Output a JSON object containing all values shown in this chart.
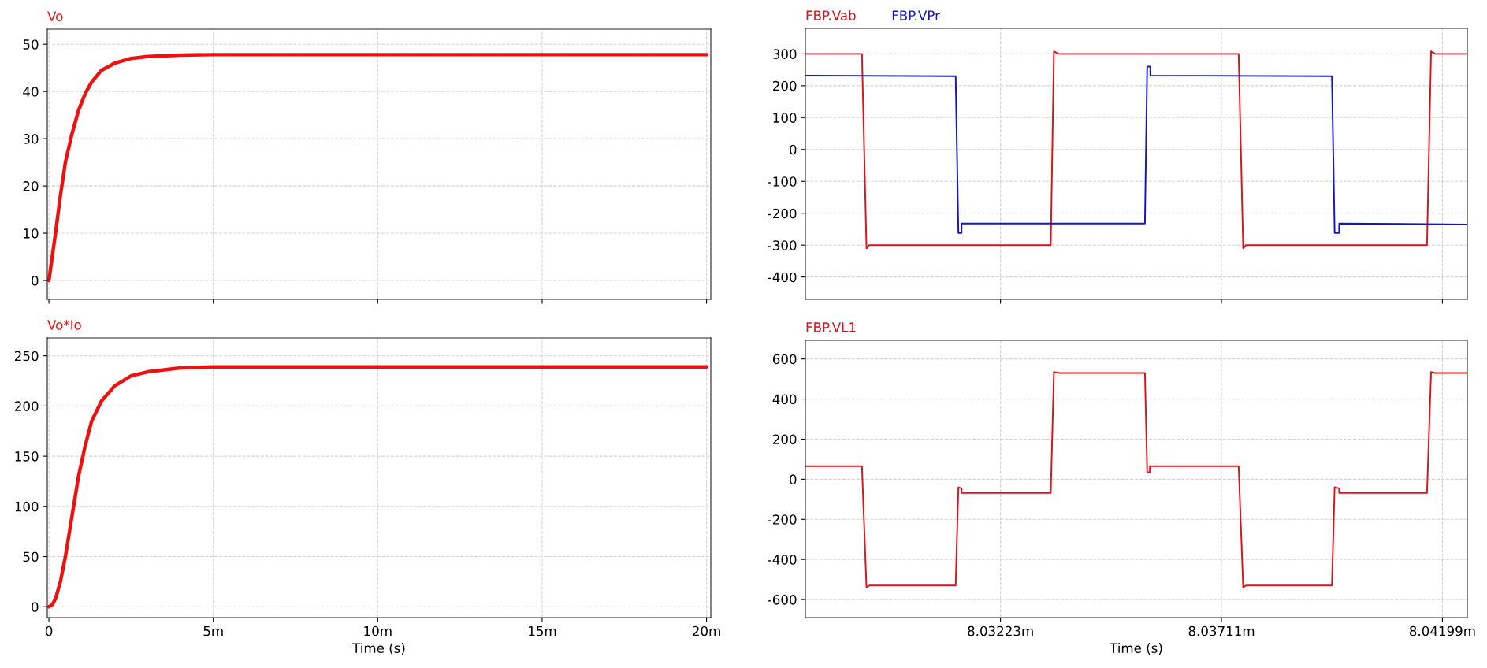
{
  "chart_data": [
    {
      "type": "line",
      "xlim": [
        -0.05,
        20.13
      ],
      "ylim": [
        -4,
        53.2
      ],
      "yticks": [
        0,
        10,
        20,
        30,
        40,
        50
      ],
      "xticks": [
        {
          "value": 0,
          "label": null
        },
        {
          "value": 5,
          "label": null
        },
        {
          "value": 10,
          "label": null
        },
        {
          "value": 15,
          "label": null
        },
        {
          "value": 20,
          "label": null
        }
      ],
      "tick_labels": "y",
      "grid": true,
      "legend": "top left",
      "series": [
        {
          "name": "Vo",
          "color": "#ee1111",
          "x": [
            0,
            0.1,
            0.2,
            0.35,
            0.5,
            0.7,
            0.9,
            1.1,
            1.3,
            1.6,
            2.0,
            2.5,
            3,
            4,
            5,
            20
          ],
          "values": [
            0,
            5,
            10,
            18,
            25,
            31,
            36,
            39.5,
            42,
            44.5,
            46,
            47,
            47.4,
            47.7,
            47.8,
            47.8
          ]
        }
      ]
    },
    {
      "type": "line",
      "xlim": [
        -0.05,
        20.13
      ],
      "ylim": [
        -10.8,
        267.8
      ],
      "yticks": [
        0,
        50,
        100,
        150,
        200,
        250
      ],
      "xticks": [
        0,
        {
          "value": 5,
          "label": "5m"
        },
        {
          "value": 10,
          "label": "10m"
        },
        {
          "value": 15,
          "label": "15m"
        },
        {
          "value": 20,
          "label": "20m"
        }
      ],
      "xlabel": "Time (s)",
      "grid": true,
      "legend": "top left",
      "series": [
        {
          "name": "Vo*Io",
          "color": "#ee1111",
          "x": [
            0,
            0.1,
            0.2,
            0.35,
            0.5,
            0.7,
            0.9,
            1.1,
            1.3,
            1.6,
            2.0,
            2.5,
            3,
            4,
            5,
            20
          ],
          "values": [
            0,
            2,
            8,
            25,
            50,
            90,
            130,
            160,
            185,
            205,
            220,
            230,
            234,
            238,
            239,
            239
          ]
        }
      ]
    },
    {
      "type": "line",
      "xlim": [
        8.02792,
        8.04254
      ],
      "ylim": [
        -470,
        380
      ],
      "yticks": [
        -400,
        -300,
        -200,
        -100,
        0,
        100,
        200,
        300
      ],
      "xticks": [
        {
          "value": 8.03223,
          "label": null
        },
        {
          "value": 8.03711,
          "label": null
        },
        {
          "value": 8.04199,
          "label": null
        }
      ],
      "tick_labels": "y",
      "grid": true,
      "legend": "top left",
      "series": [
        {
          "name": "FBP.Vab",
          "color": "#d8141c",
          "x": [
            8.02792,
            8.02917,
            8.02927,
            8.02933,
            8.03334,
            8.03341,
            8.03351,
            8.03749,
            8.03759,
            8.03765,
            8.04165,
            8.04174,
            8.04183,
            8.04254
          ],
          "values": [
            300,
            300,
            -310,
            -300,
            -300,
            308,
            300,
            300,
            -310,
            -300,
            -300,
            308,
            300,
            300
          ]
        },
        {
          "name": "FBP.VPr",
          "color": "#1414c8",
          "x": [
            8.02792,
            8.03124,
            8.0313,
            8.03137,
            8.03137,
            8.03542,
            8.03547,
            8.03554,
            8.03554,
            8.03955,
            8.03961,
            8.03971,
            8.03971,
            8.04254
          ],
          "values": [
            232,
            230,
            -262,
            -262,
            -232,
            -232,
            260,
            260,
            232,
            230,
            -262,
            -262,
            -232,
            -235
          ]
        }
      ]
    },
    {
      "type": "line",
      "xlim": [
        8.02792,
        8.04254
      ],
      "ylim": [
        -690,
        693
      ],
      "yticks": [
        -600,
        -400,
        -200,
        0,
        200,
        400,
        600
      ],
      "xticks": [
        {
          "value": 8.03223,
          "label": "8.03223m"
        },
        {
          "value": 8.03711,
          "label": "8.03711m"
        },
        {
          "value": 8.04199,
          "label": "8.04199m"
        }
      ],
      "xlabel": "Time (s)",
      "grid": true,
      "legend": "top left",
      "series": [
        {
          "name": "FBP.VL1",
          "color": "#d8141c",
          "x": [
            8.02792,
            8.02917,
            8.02927,
            8.02933,
            8.03124,
            8.0313,
            8.03137,
            8.03137,
            8.03334,
            8.03341,
            8.03351,
            8.03542,
            8.03547,
            8.03553,
            8.03553,
            8.03749,
            8.03759,
            8.03765,
            8.03955,
            8.03961,
            8.03971,
            8.03971,
            8.04165,
            8.04174,
            8.04183,
            8.04254
          ],
          "values": [
            65,
            65,
            -540,
            -530,
            -530,
            -40,
            -45,
            -68,
            -68,
            535,
            530,
            530,
            35,
            35,
            65,
            65,
            -540,
            -530,
            -530,
            -40,
            -45,
            -68,
            -68,
            535,
            530,
            530
          ]
        }
      ]
    }
  ]
}
